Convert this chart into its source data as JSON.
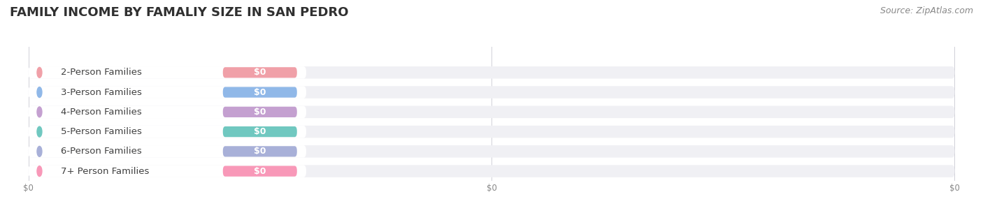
{
  "title": "FAMILY INCOME BY FAMALIY SIZE IN SAN PEDRO",
  "source": "Source: ZipAtlas.com",
  "categories": [
    "2-Person Families",
    "3-Person Families",
    "4-Person Families",
    "5-Person Families",
    "6-Person Families",
    "7+ Person Families"
  ],
  "values": [
    0,
    0,
    0,
    0,
    0,
    0
  ],
  "bar_colors": [
    "#f0a0a8",
    "#90b8e8",
    "#c4a0d0",
    "#70c8c0",
    "#a8b0d8",
    "#f898b8"
  ],
  "circle_colors": [
    "#f0a0a8",
    "#90b8e8",
    "#c4a0d0",
    "#70c8c0",
    "#a8b0d8",
    "#f898b8"
  ],
  "background_color": "#ffffff",
  "bar_bg_color": "#f0f0f4",
  "title_fontsize": 13,
  "source_fontsize": 9,
  "label_fontsize": 9.5,
  "value_fontsize": 9,
  "xlim": [
    0,
    100
  ],
  "bar_height": 0.62,
  "ylabel_color": "#404040",
  "value_label_color": "#ffffff",
  "xtick_labels": [
    "$0",
    "$0",
    "$0"
  ],
  "xtick_positions": [
    0,
    50,
    100
  ]
}
